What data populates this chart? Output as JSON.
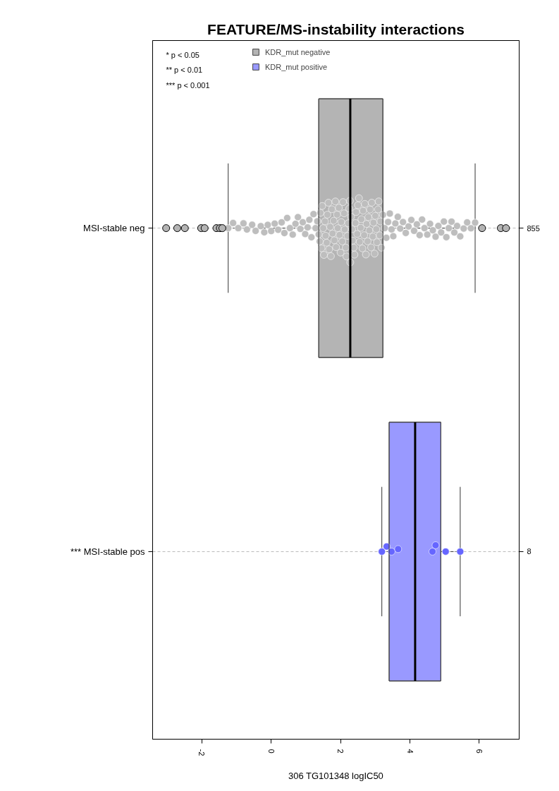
{
  "chart_data": {
    "type": "box",
    "orientation": "horizontal",
    "title": "FEATURE/MS-instability interactions",
    "xlabel": "306 TG101348 logIC50",
    "categories": [
      "MSI-stable neg",
      "*** MSI-stable pos"
    ],
    "y2_categories": [
      "855",
      "8"
    ],
    "xlim": [
      -3.42,
      7.15
    ],
    "xticks": [
      -2,
      0,
      2,
      4,
      6
    ],
    "grid": "y",
    "legend": "top left",
    "marker": "circle",
    "annotations": [
      "* p < 0.05",
      "** p < 0.01",
      "*** p < 0.001"
    ],
    "series": [
      {
        "name": "KDR_mut negative",
        "color": "#b4b4b4",
        "boxes": [
          {
            "low": -1.24,
            "q1": 1.37,
            "median": 2.28,
            "q3": 3.22,
            "high": 5.88,
            "outliers": [
              -3.03,
              -2.71,
              -2.49,
              -2.02,
              -1.92,
              -1.58,
              -1.48,
              -1.41,
              6.08,
              6.62,
              6.77
            ]
          },
          null
        ]
      },
      {
        "name": "KDR_mut positive",
        "color": "#9999ff",
        "boxes": [
          null,
          {
            "low": 3.19,
            "q1": 3.4,
            "median": 4.15,
            "q3": 4.89,
            "high": 5.45
          }
        ]
      },
      {
        "type": "scatter",
        "color": "#bebebe",
        "x": [
          "MSI-stable neg",
          "MSI-stable neg",
          "MSI-stable neg",
          "MSI-stable neg",
          "MSI-stable neg",
          "MSI-stable neg",
          "MSI-stable neg",
          "MSI-stable neg",
          "MSI-stable neg",
          "MSI-stable neg",
          "MSI-stable neg",
          "MSI-stable neg",
          "MSI-stable neg",
          "MSI-stable neg",
          "MSI-stable neg",
          "MSI-stable neg",
          "MSI-stable neg",
          "MSI-stable neg",
          "MSI-stable neg",
          "MSI-stable neg",
          "MSI-stable neg",
          "MSI-stable neg",
          "MSI-stable neg",
          "MSI-stable neg",
          "MSI-stable neg",
          "MSI-stable neg",
          "MSI-stable neg",
          "MSI-stable neg",
          "MSI-stable neg",
          "MSI-stable neg",
          "MSI-stable neg",
          "MSI-stable neg",
          "MSI-stable neg",
          "MSI-stable neg",
          "MSI-stable neg",
          "MSI-stable neg",
          "MSI-stable neg",
          "MSI-stable neg",
          "MSI-stable neg",
          "MSI-stable neg",
          "MSI-stable neg",
          "MSI-stable neg",
          "MSI-stable neg",
          "MSI-stable neg",
          "MSI-stable neg",
          "MSI-stable neg",
          "MSI-stable neg",
          "MSI-stable neg",
          "MSI-stable neg",
          "MSI-stable neg",
          "MSI-stable neg",
          "MSI-stable neg",
          "MSI-stable neg",
          "MSI-stable neg",
          "MSI-stable neg",
          "MSI-stable neg",
          "MSI-stable neg",
          "MSI-stable neg",
          "MSI-stable neg",
          "MSI-stable neg",
          "MSI-stable neg",
          "MSI-stable neg",
          "MSI-stable neg",
          "MSI-stable neg",
          "MSI-stable neg",
          "MSI-stable neg",
          "MSI-stable neg",
          "MSI-stable neg",
          "MSI-stable neg",
          "MSI-stable neg",
          "MSI-stable neg",
          "MSI-stable neg",
          "MSI-stable neg",
          "MSI-stable neg",
          "MSI-stable neg",
          "MSI-stable neg",
          "MSI-stable neg",
          "MSI-stable neg",
          "MSI-stable neg",
          "MSI-stable neg",
          "MSI-stable neg",
          "MSI-stable neg",
          "MSI-stable neg",
          "MSI-stable neg",
          "MSI-stable neg",
          "MSI-stable neg",
          "MSI-stable neg",
          "MSI-stable neg",
          "MSI-stable neg",
          "MSI-stable neg",
          "MSI-stable neg",
          "MSI-stable neg",
          "MSI-stable neg",
          "MSI-stable neg",
          "MSI-stable neg",
          "MSI-stable neg",
          "MSI-stable neg",
          "MSI-stable neg",
          "MSI-stable neg",
          "MSI-stable neg",
          "MSI-stable neg",
          "MSI-stable neg",
          "MSI-stable neg",
          "MSI-stable neg",
          "MSI-stable neg",
          "MSI-stable neg",
          "MSI-stable neg",
          "MSI-stable neg",
          "MSI-stable neg",
          "MSI-stable neg",
          "MSI-stable neg",
          "MSI-stable neg",
          "MSI-stable neg",
          "MSI-stable neg",
          "MSI-stable neg",
          "MSI-stable neg",
          "MSI-stable neg",
          "MSI-stable neg",
          "MSI-stable neg",
          "MSI-stable neg",
          "MSI-stable neg",
          "MSI-stable neg",
          "MSI-stable neg",
          "MSI-stable neg",
          "MSI-stable neg",
          "MSI-stable neg",
          "MSI-stable neg",
          "MSI-stable neg",
          "MSI-stable neg",
          "MSI-stable neg",
          "MSI-stable neg",
          "MSI-stable neg",
          "MSI-stable neg",
          "MSI-stable neg",
          "MSI-stable neg",
          "MSI-stable neg",
          "MSI-stable neg",
          "MSI-stable neg",
          "MSI-stable neg"
        ],
        "values": [
          -1.24,
          -1.1,
          -0.95,
          -0.8,
          -0.7,
          -0.55,
          -0.45,
          -0.3,
          -0.2,
          -0.1,
          0.0,
          0.1,
          0.2,
          0.3,
          0.38,
          0.46,
          0.54,
          0.62,
          0.7,
          0.77,
          0.84,
          0.91,
          0.98,
          1.05,
          1.1,
          1.16,
          1.22,
          1.28,
          1.33,
          1.37,
          1.4,
          1.42,
          1.45,
          1.47,
          1.5,
          1.52,
          1.55,
          1.57,
          1.6,
          1.62,
          1.65,
          1.67,
          1.7,
          1.72,
          1.75,
          1.77,
          1.8,
          1.82,
          1.85,
          1.87,
          1.9,
          1.92,
          1.95,
          1.97,
          2.0,
          2.02,
          2.05,
          2.07,
          2.1,
          2.12,
          2.15,
          2.17,
          2.2,
          2.22,
          2.25,
          2.27,
          2.28,
          2.3,
          2.33,
          2.35,
          2.38,
          2.4,
          2.43,
          2.45,
          2.48,
          2.5,
          2.53,
          2.55,
          2.58,
          2.6,
          2.63,
          2.65,
          2.68,
          2.7,
          2.73,
          2.75,
          2.78,
          2.8,
          2.83,
          2.85,
          2.88,
          2.9,
          2.93,
          2.95,
          2.98,
          3.0,
          3.03,
          3.05,
          3.08,
          3.1,
          3.13,
          3.15,
          3.18,
          3.22,
          3.27,
          3.32,
          3.37,
          3.42,
          3.47,
          3.52,
          3.58,
          3.65,
          3.72,
          3.8,
          3.88,
          3.96,
          4.04,
          4.12,
          4.2,
          4.28,
          4.35,
          4.42,
          4.5,
          4.58,
          4.66,
          4.74,
          4.82,
          4.9,
          4.98,
          5.05,
          5.12,
          5.2,
          5.28,
          5.36,
          5.45,
          5.55,
          5.65,
          5.76,
          5.88
        ]
      },
      {
        "type": "scatter",
        "color": "#6666ff",
        "x": [
          "*** MSI-stable pos",
          "*** MSI-stable pos",
          "*** MSI-stable pos",
          "*** MSI-stable pos",
          "*** MSI-stable pos",
          "*** MSI-stable pos",
          "*** MSI-stable pos",
          "*** MSI-stable pos"
        ],
        "values": [
          3.19,
          3.33,
          3.47,
          3.66,
          4.65,
          4.74,
          5.03,
          5.45
        ]
      }
    ]
  }
}
